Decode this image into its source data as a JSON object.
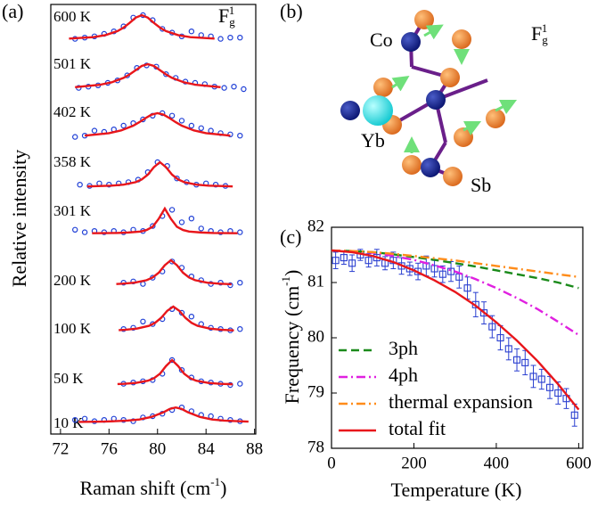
{
  "chart_data": [
    {
      "type": "spectra",
      "panel": "(a)",
      "y_label": "Relative intensity",
      "x_label": "Raman shift (cm",
      "x_label_sup": "-1",
      "x_label_end": ")",
      "mode": "F",
      "mode_sub": "g",
      "mode_sup": "1",
      "xlim": [
        71.2,
        88.1
      ],
      "xticks": [
        72,
        76,
        80,
        84,
        88
      ],
      "point_color": "#1f3fd6",
      "fit_color": "#e8161b",
      "series": [
        {
          "name": "600 K",
          "fit_x": [
            72.7,
            74.7,
            75.7,
            76.7,
            77.2,
            77.7,
            78.2,
            78.7,
            79.2,
            79.7,
            80.2,
            80.7,
            81.7,
            82.7,
            84.7
          ],
          "fit": [
            0.06,
            0.12,
            0.2,
            0.36,
            0.5,
            0.69,
            0.9,
            1,
            0.9,
            0.69,
            0.5,
            0.36,
            0.2,
            0.12,
            0.06
          ],
          "x": [
            73.2,
            74,
            74.8,
            75.6,
            76.4,
            77.2,
            78,
            78.8,
            79.6,
            80.4,
            81.2,
            82,
            82.8,
            83.6,
            84.4,
            85.2,
            86,
            86.8
          ],
          "values": [
            0.05,
            0.1,
            0.15,
            0.25,
            0.35,
            0.55,
            0.9,
            1,
            0.8,
            0.45,
            0.3,
            0.15,
            0.35,
            0.2,
            0.15,
            0.05,
            0.1,
            0.1
          ]
        },
        {
          "name": "501 K",
          "fit_x": [
            73.2,
            75.2,
            76.2,
            77.2,
            77.7,
            78.2,
            78.7,
            79.2,
            79.7,
            80.2,
            80.7,
            81.2,
            82.2,
            83.2,
            85.2
          ],
          "fit": [
            0.08,
            0.17,
            0.27,
            0.45,
            0.59,
            0.76,
            0.93,
            1,
            0.93,
            0.76,
            0.59,
            0.45,
            0.27,
            0.17,
            0.08
          ],
          "x": [
            73.5,
            74.3,
            75.1,
            75.9,
            76.7,
            77.5,
            78.3,
            79.1,
            79.9,
            80.7,
            81.5,
            82.3,
            83.1,
            83.9,
            84.7,
            85.5,
            86.3,
            87.1
          ],
          "values": [
            0.05,
            0.1,
            0.15,
            0.25,
            0.35,
            0.55,
            0.85,
            0.95,
            0.9,
            0.6,
            0.45,
            0.3,
            0.25,
            0.2,
            0.1,
            0.05,
            0.1,
            0
          ]
        },
        {
          "name": "402 K",
          "fit_x": [
            74,
            76,
            77,
            78,
            78.5,
            79,
            79.5,
            80,
            80.5,
            81,
            81.5,
            82,
            83,
            84,
            86
          ],
          "fit": [
            0.1,
            0.2,
            0.31,
            0.5,
            0.64,
            0.8,
            0.94,
            1,
            0.94,
            0.8,
            0.64,
            0.5,
            0.31,
            0.2,
            0.1
          ],
          "x": [
            73.2,
            74,
            74.8,
            75.6,
            76.4,
            77.2,
            78,
            78.8,
            79.6,
            80.4,
            81.2,
            82,
            82.8,
            83.6,
            84.4,
            85.2,
            86,
            86.8
          ],
          "values": [
            0.05,
            0.1,
            0.3,
            0.25,
            0.35,
            0.5,
            0.6,
            0.75,
            0.9,
            1,
            0.9,
            0.7,
            0.5,
            0.4,
            0.3,
            0.2,
            0.15,
            0.1
          ]
        },
        {
          "name": "358 K",
          "fit_x": [
            74.2,
            76.2,
            77.2,
            78.2,
            78.7,
            79.2,
            79.7,
            80.2,
            80.7,
            81.2,
            81.7,
            82.2,
            83.2,
            84.2,
            86.2
          ],
          "fit": [
            0.03,
            0.06,
            0.1,
            0.2,
            0.31,
            0.5,
            0.8,
            1,
            0.8,
            0.5,
            0.31,
            0.2,
            0.1,
            0.06,
            0.03
          ],
          "x": [
            73.6,
            74.4,
            75.2,
            76,
            76.8,
            77.6,
            78.4,
            79.2,
            80,
            80.8,
            81.6,
            82.4,
            83.2,
            84,
            84.8,
            85.6
          ],
          "values": [
            0.1,
            0.05,
            0.15,
            0.1,
            0.15,
            0.2,
            0.3,
            0.6,
            1,
            0.85,
            0.35,
            0.2,
            0.1,
            0.15,
            0.1,
            0.05
          ]
        },
        {
          "name": "301 K",
          "fit_x": [
            74.6,
            76.6,
            77.6,
            78.6,
            79.1,
            79.6,
            80.1,
            80.6,
            81.1,
            81.6,
            82.1,
            82.6,
            83.6,
            84.6,
            86.6
          ],
          "fit": [
            0.01,
            0.02,
            0.04,
            0.08,
            0.14,
            0.27,
            0.59,
            1,
            0.59,
            0.27,
            0.14,
            0.08,
            0.04,
            0.02,
            0.01
          ],
          "x": [
            73.2,
            74,
            74.8,
            75.6,
            76.4,
            77.2,
            78,
            78.8,
            79.6,
            80.4,
            81.2,
            82,
            82.8,
            83.6,
            84.4,
            85.2,
            86,
            86.8
          ],
          "values": [
            0.15,
            0.05,
            0.1,
            0.05,
            0.1,
            0.05,
            0.15,
            0.1,
            0.3,
            0.7,
            0.95,
            0.45,
            0.6,
            0.2,
            0.1,
            0.05,
            0.1,
            0.05
          ]
        },
        {
          "name": "200 K",
          "fit_x": [
            76.6,
            77.1,
            78.1,
            79.1,
            79.6,
            80.1,
            80.6,
            81.1,
            81.6,
            82.1,
            82.6,
            83.1,
            84.1,
            85.1,
            86.1
          ],
          "fit": [
            0.047,
            0.059,
            0.1,
            0.2,
            0.31,
            0.5,
            0.8,
            1,
            0.8,
            0.5,
            0.31,
            0.2,
            0.1,
            0.059,
            0.038
          ],
          "x": [
            77.2,
            78,
            78.8,
            79.6,
            80.4,
            81.2,
            82,
            82.8,
            83.6,
            84.4,
            85.2,
            86,
            86.8
          ],
          "values": [
            0.1,
            0.15,
            0.05,
            0.3,
            0.55,
            0.95,
            0.7,
            0.35,
            0.2,
            0.05,
            0.1,
            0,
            0.1
          ]
        },
        {
          "name": "100 K",
          "fit_x": [
            76.8,
            77.3,
            78.3,
            79.3,
            79.8,
            80.3,
            80.8,
            81.3,
            81.8,
            82.3,
            82.8,
            83.3,
            84.3,
            85.3,
            86.3
          ],
          "fit": [
            0.056,
            0.07,
            0.12,
            0.23,
            0.35,
            0.55,
            0.83,
            1,
            0.83,
            0.55,
            0.35,
            0.23,
            0.12,
            0.07,
            0.046
          ],
          "x": [
            77.2,
            78,
            78.8,
            79.6,
            80.4,
            81.2,
            82,
            82.8,
            83.6,
            84.4,
            85.2,
            86,
            86.8
          ],
          "values": [
            0.1,
            0.15,
            0.4,
            0.3,
            0.5,
            0.9,
            0.75,
            0.6,
            0.3,
            0.15,
            0.1,
            0.05,
            0.1
          ]
        },
        {
          "name": "50 K",
          "fit_x": [
            76.7,
            77.2,
            78.2,
            79.2,
            79.7,
            80.2,
            80.7,
            81.2,
            81.7,
            82.2,
            82.7,
            83.2,
            84.2,
            85.2,
            86.2
          ],
          "fit": [
            0.038,
            0.048,
            0.083,
            0.17,
            0.27,
            0.45,
            0.76,
            1,
            0.76,
            0.45,
            0.27,
            0.17,
            0.083,
            0.048,
            0.031
          ],
          "x": [
            77.2,
            78,
            78.8,
            79.6,
            80.4,
            81.2,
            82,
            82.8,
            83.6,
            84.4,
            85.2,
            86,
            86.8
          ],
          "values": [
            0.05,
            0.1,
            0.15,
            0.2,
            0.45,
            1,
            0.6,
            0.3,
            0.15,
            0.1,
            0.05,
            0,
            0.05
          ]
        },
        {
          "name": "10 K",
          "fit_x": [
            73.5,
            75.5,
            76.5,
            77.5,
            78.5,
            79.5,
            80.5,
            81,
            81.5,
            82,
            82.5,
            83.5,
            84.5,
            85.5,
            87.5
          ],
          "fit": [
            0.02,
            0.035,
            0.05,
            0.074,
            0.12,
            0.22,
            0.41,
            0.54,
            0.6,
            0.54,
            0.41,
            0.22,
            0.12,
            0.074,
            0.035
          ],
          "x": [
            73.2,
            74,
            74.8,
            75.6,
            76.4,
            77.2,
            78,
            78.8,
            79.6,
            80.4,
            81.2,
            82,
            82.8,
            83.6,
            84.4,
            85.2,
            86,
            86.8
          ],
          "values": [
            0.1,
            0.15,
            0.05,
            0.1,
            0.15,
            0.1,
            0.05,
            0.2,
            0.25,
            0.35,
            0.5,
            0.6,
            0.45,
            0.3,
            0.25,
            0.15,
            0.1,
            0.05
          ]
        }
      ]
    },
    {
      "type": "line",
      "panel": "(c)",
      "x_label": "Temperature (K)",
      "y_label": "Frequency (cm",
      "y_label_sup": "-1",
      "y_label_end": ")",
      "xlim": [
        0,
        610
      ],
      "ylim": [
        78,
        82
      ],
      "xticks": [
        0,
        200,
        400,
        600
      ],
      "yticks": [
        78,
        79,
        80,
        81,
        82
      ],
      "legend": "lower left",
      "x": [
        0,
        50,
        100,
        150,
        200,
        250,
        300,
        350,
        400,
        450,
        500,
        550,
        600
      ],
      "series": [
        {
          "name": "3ph",
          "color": "#1a8a1a",
          "dash": "dashed",
          "values": [
            81.58,
            81.57,
            81.55,
            81.51,
            81.46,
            81.41,
            81.35,
            81.29,
            81.22,
            81.15,
            81.08,
            81.0,
            80.9
          ]
        },
        {
          "name": "4ph",
          "color": "#e020e0",
          "dash": "dashdot",
          "values": [
            81.58,
            81.57,
            81.54,
            81.48,
            81.41,
            81.31,
            81.2,
            81.06,
            80.9,
            80.72,
            80.52,
            80.29,
            80.05
          ]
        },
        {
          "name": "thermal expansion",
          "color": "#ff8c1a",
          "dash": "dashdot",
          "values": [
            81.58,
            81.57,
            81.55,
            81.52,
            81.48,
            81.44,
            81.4,
            81.35,
            81.3,
            81.25,
            81.2,
            81.15,
            81.1
          ]
        },
        {
          "name": "total fit",
          "color": "#e8161b",
          "dash": "solid",
          "values": [
            81.58,
            81.55,
            81.48,
            81.37,
            81.22,
            81.04,
            80.83,
            80.58,
            80.28,
            79.95,
            79.58,
            79.16,
            78.7
          ]
        }
      ],
      "data": {
        "color": "#2a3fd0",
        "x": [
          10,
          30,
          50,
          70,
          90,
          110,
          130,
          150,
          170,
          190,
          210,
          230,
          250,
          270,
          290,
          310,
          330,
          350,
          370,
          390,
          410,
          430,
          450,
          470,
          490,
          510,
          530,
          550,
          570,
          590
        ],
        "values": [
          81.4,
          81.45,
          81.35,
          81.5,
          81.4,
          81.45,
          81.35,
          81.4,
          81.3,
          81.25,
          81.2,
          81.3,
          81.25,
          81.15,
          81.2,
          81.1,
          80.9,
          80.6,
          80.45,
          80.2,
          80.0,
          79.8,
          79.6,
          79.55,
          79.3,
          79.25,
          79.1,
          79.0,
          78.9,
          78.6
        ],
        "errors": [
          0.15,
          0.12,
          0.15,
          0.1,
          0.12,
          0.15,
          0.12,
          0.15,
          0.15,
          0.12,
          0.15,
          0.18,
          0.15,
          0.15,
          0.18,
          0.2,
          0.2,
          0.22,
          0.2,
          0.2,
          0.22,
          0.2,
          0.2,
          0.22,
          0.2,
          0.18,
          0.2,
          0.2,
          0.18,
          0.2
        ]
      }
    }
  ],
  "diagram": {
    "panel": "(b)",
    "mode": "F",
    "mode_sub": "g",
    "mode_sup": "1",
    "atoms": {
      "co": "Co",
      "yb": "Yb",
      "sb": "Sb"
    }
  }
}
